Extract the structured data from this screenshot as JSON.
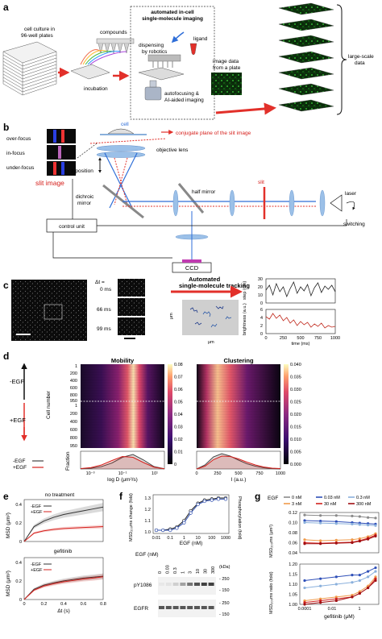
{
  "panel_a": {
    "label": "a",
    "cell_culture": [
      "cell culture in",
      "96-well plates"
    ],
    "compounds": "compounds",
    "incubation": "incubation",
    "box_title": [
      "automated in-cell",
      "single-molecule imaging"
    ],
    "ligand": "ligand",
    "dispensing": [
      "dispensing",
      "by robotics"
    ],
    "autofocusing": [
      "autofocusing &",
      "AI-aided imaging"
    ],
    "image_data": [
      "image data",
      "from a plate"
    ],
    "large_scale": [
      "large-scale",
      "data"
    ]
  },
  "panel_b": {
    "label": "b",
    "over_focus": "over-focus",
    "in_focus": "in-focus",
    "under_focus": "under-focus",
    "slit_image": "slit image",
    "cell": "cell",
    "conjugate": "conjugate plane of the slit image",
    "objective": "objective lens",
    "z_position": "z-position",
    "dichroic": [
      "dichroic",
      "mirror"
    ],
    "half_mirror": "half mirror",
    "slit": "slit",
    "laser": "laser",
    "switching": "switching",
    "control_unit": "control unit",
    "ccd": "CCD"
  },
  "panel_c": {
    "label": "c",
    "dt_label": "Δt =",
    "times": [
      "0 ms",
      "66 ms",
      "99 ms"
    ],
    "tracking": [
      "Automated",
      "single-molecule tracking"
    ],
    "um_x": "μm",
    "um_y": "μm",
    "step_ylabel": "step (nm)",
    "bright_ylabel": "brightness (a.u.)",
    "time_xlabel": "time (ms)",
    "step_yticks": [
      "0",
      "10",
      "20",
      "30"
    ],
    "bright_yticks": [
      "0",
      "2",
      "4",
      "6"
    ],
    "time_xticks": [
      "0",
      "250",
      "500",
      "750",
      "1000"
    ]
  },
  "panel_d": {
    "label": "d",
    "minus_egf": "-EGF",
    "plus_egf": "+EGF",
    "cell_number": "Cell number",
    "fraction": "Fraction",
    "legend_minus": "-EGF",
    "legend_plus": "+EGF",
    "mobility_title": "Mobility",
    "clustering_title": "Clustering",
    "row_ticks_top": [
      "1",
      "200",
      "400",
      "600",
      "800",
      "950"
    ],
    "row_ticks_bottom": [
      "1",
      "200",
      "400",
      "600",
      "800",
      "950"
    ],
    "mobility_xlabel": "log D (μm²/s)",
    "mobility_xticks": [
      "10⁻³",
      "10⁻¹",
      "10¹"
    ],
    "mobility_cbar": [
      "0.08",
      "0.07",
      "0.06",
      "0.05",
      "0.04",
      "0.03",
      "0.02",
      "0.01",
      "0"
    ],
    "clustering_xlabel": "I (a.u.)",
    "clustering_xticks": [
      "0",
      "250",
      "500",
      "750",
      "1000"
    ],
    "clustering_cbar": [
      "0.040",
      "0.035",
      "0.030",
      "0.025",
      "0.020",
      "0.015",
      "0.010",
      "0.005",
      "0.000"
    ]
  },
  "panel_e": {
    "label": "e",
    "title": "no treatment",
    "legend": [
      "-EGF",
      "+EGF"
    ],
    "top_legend_title": "gefitinib",
    "ylabel": "MSD (μm²)",
    "xlabel": "Δt (s)",
    "yticks": [
      "0",
      "0.2",
      "0.4"
    ],
    "xticks": [
      "0",
      "0.2",
      "0.4",
      "0.6",
      "0.8"
    ]
  },
  "panel_f": {
    "label": "f",
    "ylabel_left": "MSD₂₀₀ms change (fold)",
    "ylabel_right": "Phosphorylation (fold)",
    "xlabel": "EGF (nM)",
    "xticks": [
      "0.01",
      "0.1",
      "1",
      "10",
      "100",
      "1000"
    ],
    "yticks": [
      "1.0",
      "1.1",
      "1.2",
      "1.3"
    ],
    "blot_header": "EGF (nM)",
    "blot_doses": [
      "0",
      "0.03",
      "0.3",
      "1",
      "3",
      "10",
      "30",
      "300"
    ],
    "kda": "(kDa)",
    "py1086": "pY1086",
    "egfr": "EGFR",
    "markers_top": [
      "- 250",
      "- 150"
    ],
    "markers_bottom": [
      "- 250",
      "- 150"
    ]
  },
  "panel_g": {
    "label": "g",
    "egf": "EGF",
    "legend": [
      "0 nM",
      "0.03 nM",
      "0.3 nM",
      "3 nM",
      "30 nM",
      "300 nM"
    ],
    "ylabel_top": "MSD₂₀₀ms (μm²)",
    "ylabel_bottom": "MSD₂₀₀ms ratio (fold)",
    "xlabel": "gefitinib (μM)",
    "xticks": [
      "0.0001",
      "0.01",
      "1"
    ],
    "yticks_top": [
      "0.12",
      "0.10",
      "0.08",
      "0.06",
      "0.04"
    ],
    "yticks_bottom": [
      "1.20",
      "1.15",
      "1.10",
      "1.05",
      "1.00"
    ]
  },
  "chart_data": [
    {
      "type": "line",
      "panel": "c-step",
      "x": [
        0,
        50,
        100,
        150,
        200,
        250,
        300,
        350,
        400,
        450,
        500,
        550,
        600,
        650,
        700,
        750,
        800,
        850,
        900,
        950,
        1000
      ],
      "series": [
        {
          "values": [
            16,
            22,
            10,
            24,
            14,
            20,
            8,
            18,
            26,
            12,
            20,
            15,
            23,
            9,
            19,
            25,
            13,
            21,
            17,
            22,
            14
          ]
        }
      ],
      "xlabel": "time (ms)",
      "ylabel": "step (nm)",
      "xlim": [
        0,
        1000
      ],
      "ylim": [
        0,
        30
      ],
      "color": "#222222"
    },
    {
      "type": "line",
      "panel": "c-brightness",
      "x": [
        0,
        50,
        100,
        150,
        200,
        250,
        300,
        350,
        400,
        450,
        500,
        550,
        600,
        650,
        700,
        750,
        800,
        850,
        900,
        950,
        1000
      ],
      "series": [
        {
          "values": [
            4.2,
            3.6,
            5.0,
            3.8,
            4.6,
            3.2,
            4.0,
            2.6,
            3.4,
            2.0,
            3.0,
            2.2,
            2.8,
            1.6,
            2.4,
            1.8,
            2.6,
            1.4,
            2.0,
            1.6,
            1.8
          ]
        }
      ],
      "xlabel": "time (ms)",
      "ylabel": "brightness (a.u.)",
      "xlim": [
        0,
        1000
      ],
      "ylim": [
        0,
        6
      ],
      "color": "#c0281c"
    },
    {
      "type": "area",
      "panel": "d-mobility-histogram",
      "x": [
        -3,
        -2.5,
        -2,
        -1.5,
        -1,
        -0.5,
        0,
        0.5,
        1
      ],
      "series": [
        {
          "name": "-EGF",
          "values": [
            0.001,
            0.004,
            0.012,
            0.03,
            0.058,
            0.072,
            0.045,
            0.012,
            0.001
          ],
          "color": "#444444"
        },
        {
          "name": "+EGF",
          "values": [
            0.002,
            0.007,
            0.02,
            0.042,
            0.062,
            0.058,
            0.032,
            0.009,
            0.001
          ],
          "color": "#d6201c"
        }
      ],
      "xlabel": "log D (μm²/s)",
      "ylabel": "Fraction"
    },
    {
      "type": "area",
      "panel": "d-clustering-histogram",
      "x": [
        0,
        100,
        200,
        300,
        400,
        500,
        600,
        700,
        800,
        900,
        1000
      ],
      "series": [
        {
          "name": "-EGF",
          "values": [
            0.0,
            0.01,
            0.03,
            0.038,
            0.032,
            0.022,
            0.013,
            0.007,
            0.003,
            0.001,
            0.0
          ],
          "color": "#444444"
        },
        {
          "name": "+EGF",
          "values": [
            0.0,
            0.007,
            0.023,
            0.032,
            0.031,
            0.025,
            0.017,
            0.01,
            0.005,
            0.002,
            0.001
          ],
          "color": "#d6201c"
        }
      ],
      "xlabel": "I (a.u.)",
      "ylabel": "Fraction"
    },
    {
      "type": "line",
      "panel": "e-no-treatment",
      "x": [
        0,
        0.1,
        0.2,
        0.3,
        0.4,
        0.5,
        0.6,
        0.7,
        0.8
      ],
      "series": [
        {
          "name": "-EGF",
          "values": [
            0,
            0.16,
            0.22,
            0.26,
            0.29,
            0.31,
            0.33,
            0.35,
            0.37
          ]
        },
        {
          "name": "+EGF",
          "values": [
            0,
            0.09,
            0.115,
            0.13,
            0.14,
            0.145,
            0.15,
            0.155,
            0.16
          ]
        }
      ],
      "xlabel": "Δt (s)",
      "ylabel": "MSD (μm²)",
      "xlim": [
        0,
        0.8
      ],
      "ylim": [
        0,
        0.45
      ]
    },
    {
      "type": "line",
      "panel": "e-gefitinib",
      "x": [
        0,
        0.1,
        0.2,
        0.3,
        0.4,
        0.5,
        0.6,
        0.7,
        0.8
      ],
      "series": [
        {
          "name": "-EGF",
          "values": [
            0,
            0.11,
            0.155,
            0.18,
            0.2,
            0.215,
            0.23,
            0.24,
            0.25
          ]
        },
        {
          "name": "+EGF",
          "values": [
            0,
            0.1,
            0.145,
            0.17,
            0.19,
            0.205,
            0.22,
            0.23,
            0.245
          ]
        }
      ],
      "xlabel": "Δt (s)",
      "ylabel": "MSD (μm²)",
      "xlim": [
        0,
        0.8
      ],
      "ylim": [
        0,
        0.45
      ]
    },
    {
      "type": "line",
      "panel": "f-dose-response",
      "x": [
        0.01,
        0.03,
        0.1,
        0.3,
        1,
        3,
        10,
        30,
        100,
        300,
        1000
      ],
      "series": [
        {
          "name": "MSD₂₀₀ms change",
          "values": [
            1.0,
            1.0,
            1.01,
            1.03,
            1.09,
            1.18,
            1.25,
            1.28,
            1.29,
            1.3,
            1.3
          ]
        },
        {
          "name": "Phosphorylation",
          "values": [
            1.0,
            1.0,
            1.0,
            1.02,
            1.07,
            1.16,
            1.24,
            1.27,
            1.28,
            1.29,
            1.29
          ]
        }
      ],
      "xlabel": "EGF (nM)",
      "xscale": "log",
      "ylim": [
        0.95,
        1.35
      ]
    },
    {
      "type": "line",
      "panel": "g-msd",
      "x": [
        0.0001,
        0.001,
        0.01,
        0.1,
        0.3,
        1,
        3
      ],
      "xscale": "log",
      "series": [
        {
          "name": "0 nM",
          "values": [
            0.115,
            0.114,
            0.114,
            0.113,
            0.112,
            0.11,
            0.109
          ],
          "color": "#8a8a8a"
        },
        {
          "name": "0.03 nM",
          "values": [
            0.104,
            0.103,
            0.102,
            0.1,
            0.099,
            0.098,
            0.097
          ],
          "color": "#2e4fb8"
        },
        {
          "name": "0.3 nM",
          "values": [
            0.1,
            0.099,
            0.098,
            0.097,
            0.096,
            0.095,
            0.094
          ],
          "color": "#8ab0dc"
        },
        {
          "name": "3 nM",
          "values": [
            0.066,
            0.064,
            0.065,
            0.066,
            0.068,
            0.072,
            0.078
          ],
          "color": "#f09a4a"
        },
        {
          "name": "30 nM",
          "values": [
            0.06,
            0.059,
            0.06,
            0.061,
            0.064,
            0.069,
            0.075
          ],
          "color": "#d0201c"
        },
        {
          "name": "300 nM",
          "values": [
            0.058,
            0.058,
            0.059,
            0.06,
            0.063,
            0.067,
            0.073
          ],
          "color": "#a00f12"
        }
      ],
      "xlabel": "gefitinib (μM)",
      "ylabel": "MSD₂₀₀ms (μm²)",
      "ylim": [
        0.04,
        0.12
      ]
    },
    {
      "type": "line",
      "panel": "g-ratio",
      "x": [
        0.0001,
        0.001,
        0.01,
        0.1,
        0.3,
        1,
        3
      ],
      "xscale": "log",
      "series": [
        {
          "name": "0.03 nM",
          "values": [
            1.13,
            1.14,
            1.15,
            1.16,
            1.16,
            1.18,
            1.2
          ],
          "color": "#2e4fb8"
        },
        {
          "name": "0.3 nM",
          "values": [
            1.09,
            1.1,
            1.11,
            1.12,
            1.13,
            1.15,
            1.18
          ],
          "color": "#8ab0dc"
        },
        {
          "name": "3 nM",
          "values": [
            1.02,
            1.03,
            1.04,
            1.05,
            1.07,
            1.1,
            1.15
          ],
          "color": "#f09a4a"
        },
        {
          "name": "30 nM",
          "values": [
            1.01,
            1.02,
            1.03,
            1.04,
            1.06,
            1.09,
            1.14
          ],
          "color": "#d0201c"
        },
        {
          "name": "300 nM",
          "values": [
            1.0,
            1.01,
            1.02,
            1.04,
            1.06,
            1.09,
            1.13
          ],
          "color": "#a00f12"
        }
      ],
      "xlabel": "gefitinib (μM)",
      "ylabel": "MSD₂₀₀ms ratio (fold)",
      "ylim": [
        1.0,
        1.22
      ]
    }
  ]
}
